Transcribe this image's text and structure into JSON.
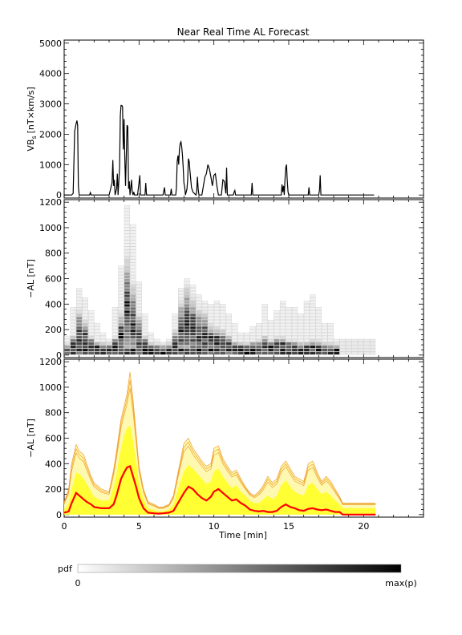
{
  "title": "Near Real Time AL Forecast",
  "colors": {
    "axis": "#000000",
    "vbs_line": "#000000",
    "band_fill": "#ffff33",
    "band_edge": "#f0a030",
    "median_line": "#ff0000",
    "pdf_low": "#ffffff",
    "pdf_high": "#000000"
  },
  "colorbar": {
    "label": "pdf",
    "min_label": "0",
    "max_label": "max(p)"
  },
  "chart_data": [
    {
      "type": "line",
      "panel": "vbs",
      "ylabel": "VB",
      "ylabel_sub": "s",
      "ylabel_unit": "[nT×km/s]",
      "xlim": [
        0,
        24
      ],
      "ylim": [
        -100,
        5100
      ],
      "yticks": [
        0,
        1000,
        2000,
        3000,
        4000,
        5000
      ],
      "xticks": [
        0,
        5,
        10,
        15,
        20
      ],
      "series": [
        {
          "x": [
            0,
            0.5,
            0.6,
            0.7,
            0.8,
            0.85,
            0.9,
            0.95,
            1.0,
            1.7,
            1.75,
            1.8,
            3.0,
            3.1,
            3.2,
            3.25,
            3.3,
            3.35,
            3.4,
            3.5,
            3.55,
            3.6,
            3.7,
            3.75,
            3.8,
            3.85,
            3.9,
            3.95,
            4.0,
            4.05,
            4.1,
            4.2,
            4.25,
            4.3,
            4.35,
            4.4,
            4.45,
            4.5,
            4.55,
            4.6,
            4.65,
            4.7,
            4.9,
            4.95,
            5.0,
            5.05,
            5.1,
            5.4,
            5.45,
            5.5,
            6.6,
            6.7,
            6.75,
            7.1,
            7.15,
            7.2,
            7.45,
            7.5,
            7.55,
            7.6,
            7.65,
            7.7,
            7.75,
            7.8,
            7.85,
            7.9,
            7.95,
            8.0,
            8.05,
            8.1,
            8.2,
            8.25,
            8.3,
            8.35,
            8.4,
            8.5,
            8.6,
            8.7,
            8.8,
            8.85,
            8.9,
            8.95,
            9.0,
            9.2,
            9.3,
            9.4,
            9.5,
            9.6,
            9.7,
            9.8,
            9.9,
            10.0,
            10.1,
            10.2,
            10.3,
            10.5,
            10.6,
            10.7,
            10.8,
            10.85,
            10.9,
            11.3,
            11.35,
            11.4,
            11.45,
            11.5,
            12.5,
            12.55,
            12.6,
            14.5,
            14.55,
            14.6,
            14.65,
            14.7,
            14.75,
            14.8,
            14.85,
            14.9,
            14.95,
            15.0,
            16.3,
            16.35,
            16.4,
            17.0,
            17.05,
            17.1,
            17.15,
            20.7
          ],
          "y": [
            0,
            0,
            50,
            2100,
            2350,
            2450,
            2300,
            300,
            0,
            0,
            80,
            0,
            0,
            200,
            400,
            1150,
            300,
            500,
            0,
            200,
            700,
            0,
            900,
            2600,
            2950,
            2950,
            2900,
            1500,
            2500,
            1200,
            300,
            2300,
            2250,
            200,
            450,
            0,
            250,
            500,
            100,
            0,
            100,
            0,
            0,
            200,
            400,
            650,
            0,
            0,
            400,
            0,
            0,
            250,
            0,
            0,
            200,
            0,
            0,
            250,
            1100,
            1300,
            1000,
            1500,
            1700,
            1750,
            1600,
            1300,
            900,
            400,
            250,
            0,
            200,
            500,
            1200,
            1100,
            800,
            250,
            100,
            50,
            0,
            100,
            600,
            200,
            0,
            0,
            300,
            600,
            700,
            1000,
            850,
            600,
            300,
            650,
            700,
            300,
            0,
            0,
            500,
            450,
            50,
            900,
            0,
            0,
            100,
            150,
            0,
            0,
            0,
            400,
            0,
            0,
            350,
            100,
            300,
            0,
            500,
            900,
            1000,
            500,
            100,
            0,
            0,
            250,
            0,
            0,
            150,
            650,
            0,
            0
          ]
        }
      ]
    },
    {
      "type": "heatmap",
      "panel": "pdf",
      "ylabel": "−AL [nT]",
      "xlim": [
        0,
        24
      ],
      "ylim": [
        -20,
        1220
      ],
      "yticks": [
        0,
        200,
        400,
        600,
        800,
        1000,
        1200
      ],
      "xticks": [
        0,
        5,
        10,
        15,
        20
      ],
      "x": [
        0.2,
        0.6,
        1.0,
        1.4,
        1.8,
        2.2,
        2.6,
        3.0,
        3.4,
        3.8,
        4.2,
        4.6,
        5.0,
        5.4,
        5.8,
        6.2,
        6.6,
        7.0,
        7.4,
        7.8,
        8.2,
        8.6,
        9.0,
        9.4,
        9.8,
        10.2,
        10.6,
        11.0,
        11.4,
        11.8,
        12.2,
        12.6,
        13.0,
        13.4,
        13.8,
        14.2,
        14.6,
        15.0,
        15.4,
        15.8,
        16.2,
        16.6,
        17.0,
        17.4,
        17.8,
        18.2,
        18.6,
        19.0,
        19.4,
        19.8,
        20.2,
        20.6
      ],
      "mode": [
        15,
        60,
        150,
        110,
        60,
        35,
        25,
        20,
        55,
        140,
        330,
        240,
        130,
        60,
        25,
        15,
        15,
        20,
        80,
        180,
        230,
        190,
        150,
        140,
        100,
        90,
        80,
        60,
        40,
        30,
        25,
        35,
        45,
        60,
        40,
        55,
        55,
        45,
        40,
        30,
        35,
        45,
        40,
        25,
        20,
        15,
        10,
        10,
        10,
        10,
        10,
        10
      ],
      "top": [
        130,
        350,
        500,
        440,
        330,
        230,
        150,
        120,
        350,
        680,
        1150,
        1000,
        560,
        300,
        150,
        100,
        90,
        110,
        300,
        520,
        590,
        540,
        470,
        420,
        380,
        420,
        380,
        300,
        230,
        170,
        150,
        200,
        240,
        380,
        260,
        330,
        400,
        360,
        360,
        300,
        420,
        460,
        360,
        240,
        240,
        100,
        100,
        100,
        100,
        100,
        100,
        100
      ],
      "fade_after_x": 18.5
    },
    {
      "type": "area",
      "panel": "forecast",
      "ylabel": "−AL [nT]",
      "xlabel": "Time [min]",
      "xlim": [
        0,
        24
      ],
      "ylim": [
        -20,
        1220
      ],
      "yticks": [
        0,
        200,
        400,
        600,
        800,
        1000,
        1200
      ],
      "xticks": [
        0,
        5,
        10,
        15,
        20
      ],
      "xtick_labels": [
        "0",
        "5",
        "10",
        "15",
        "20"
      ],
      "x": [
        0.0,
        0.3,
        0.5,
        0.8,
        1.0,
        1.3,
        1.5,
        1.8,
        2.0,
        2.5,
        3.0,
        3.3,
        3.5,
        3.8,
        4.0,
        4.2,
        4.4,
        4.6,
        4.8,
        5.0,
        5.3,
        5.6,
        6.0,
        6.3,
        6.6,
        7.0,
        7.3,
        7.6,
        8.0,
        8.3,
        8.6,
        8.9,
        9.2,
        9.5,
        9.8,
        10.0,
        10.3,
        10.6,
        10.9,
        11.2,
        11.5,
        11.8,
        12.1,
        12.4,
        12.7,
        13.0,
        13.3,
        13.6,
        13.9,
        14.2,
        14.5,
        14.8,
        15.1,
        15.4,
        15.7,
        16.0,
        16.3,
        16.6,
        16.9,
        17.2,
        17.5,
        17.8,
        18.1,
        18.4,
        18.6,
        19.0,
        19.5,
        20.0,
        20.5,
        20.8
      ],
      "median": [
        15,
        25,
        90,
        170,
        150,
        120,
        100,
        80,
        60,
        50,
        50,
        80,
        150,
        280,
        330,
        370,
        380,
        300,
        220,
        130,
        50,
        15,
        10,
        8,
        10,
        15,
        30,
        90,
        170,
        220,
        200,
        160,
        130,
        110,
        140,
        180,
        200,
        170,
        140,
        110,
        120,
        90,
        70,
        40,
        30,
        25,
        30,
        20,
        20,
        30,
        60,
        80,
        60,
        50,
        35,
        30,
        45,
        50,
        40,
        35,
        40,
        30,
        20,
        20,
        0,
        0,
        0,
        0,
        0,
        0
      ],
      "upper": [
        100,
        200,
        400,
        550,
        500,
        470,
        400,
        300,
        250,
        200,
        180,
        350,
        500,
        750,
        850,
        950,
        1120,
        900,
        650,
        380,
        200,
        100,
        80,
        60,
        60,
        80,
        150,
        330,
        560,
        600,
        520,
        470,
        420,
        380,
        400,
        520,
        540,
        440,
        380,
        330,
        350,
        280,
        220,
        170,
        150,
        180,
        230,
        300,
        250,
        280,
        380,
        420,
        360,
        300,
        280,
        260,
        400,
        420,
        330,
        260,
        300,
        260,
        200,
        140,
        90,
        90,
        90,
        90,
        90,
        90
      ],
      "band": [
        40,
        90,
        200,
        330,
        320,
        280,
        240,
        180,
        140,
        110,
        110,
        220,
        320,
        520,
        620,
        680,
        700,
        580,
        430,
        250,
        120,
        50,
        35,
        25,
        25,
        40,
        80,
        200,
        340,
        390,
        360,
        320,
        280,
        240,
        260,
        340,
        360,
        300,
        250,
        210,
        230,
        180,
        150,
        110,
        90,
        90,
        120,
        150,
        120,
        150,
        230,
        270,
        220,
        180,
        160,
        150,
        230,
        250,
        200,
        160,
        180,
        150,
        110,
        80,
        50,
        50,
        50,
        50,
        50,
        50
      ]
    }
  ]
}
